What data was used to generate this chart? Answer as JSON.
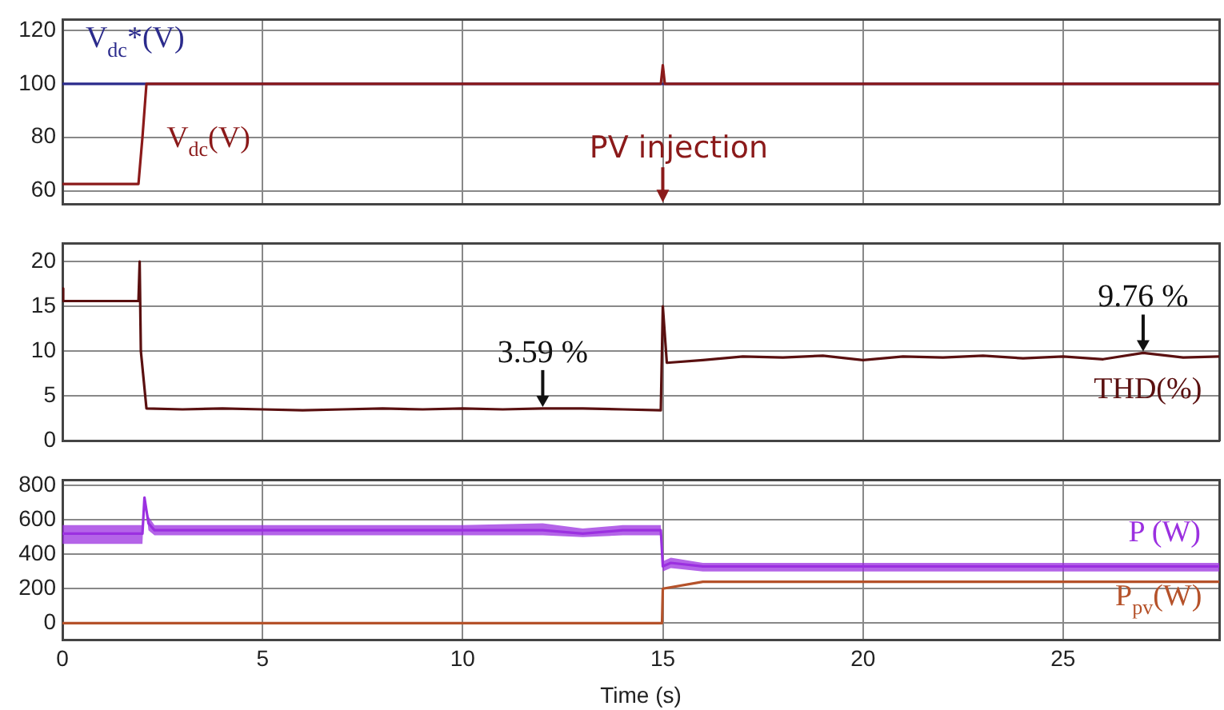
{
  "chart_data": [
    {
      "type": "line",
      "xlim": [
        0,
        28.9
      ],
      "xticks": [
        0,
        5,
        10,
        15,
        20,
        25
      ],
      "ylim": [
        55,
        124
      ],
      "yticks": [
        60,
        80,
        100,
        120
      ],
      "grid": true,
      "legend": false,
      "tick_labels": "y",
      "series": [
        {
          "name": "V$_{dc}$*(V)",
          "color": "#2b2b8c",
          "x": [
            0,
            2,
            28.9
          ],
          "values": [
            100,
            100,
            100
          ]
        },
        {
          "name": "V$_{dc}$(V)",
          "color": "#8b1a1a",
          "x": [
            0,
            1.9,
            2.0,
            2.1,
            14.95,
            15.0,
            15.05,
            28.9
          ],
          "values": [
            62.5,
            62.5,
            80,
            100,
            100,
            107,
            100,
            100
          ]
        }
      ],
      "annotations": [
        "PV injection"
      ]
    },
    {
      "type": "line",
      "xlim": [
        0,
        28.9
      ],
      "xticks": [
        0,
        5,
        10,
        15,
        20,
        25
      ],
      "ylim": [
        0,
        22
      ],
      "yticks": [
        0,
        5,
        10,
        15,
        20
      ],
      "grid": true,
      "legend": false,
      "tick_labels": "y",
      "series": [
        {
          "name": "THD(%)",
          "color": "#5a1010",
          "x": [
            0,
            0.02,
            1.9,
            1.93,
            1.96,
            2.1,
            3,
            4,
            5,
            6,
            7,
            8,
            9,
            10,
            11,
            12,
            13,
            14,
            14.95,
            15.0,
            15.1,
            16,
            17,
            18,
            19,
            20,
            21,
            22,
            23,
            24,
            25,
            26,
            27,
            28,
            28.9
          ],
          "values": [
            17,
            15.6,
            15.6,
            20,
            10,
            3.6,
            3.5,
            3.6,
            3.5,
            3.4,
            3.5,
            3.6,
            3.5,
            3.6,
            3.5,
            3.6,
            3.6,
            3.5,
            3.4,
            15,
            8.7,
            9.0,
            9.4,
            9.3,
            9.5,
            9.0,
            9.4,
            9.3,
            9.5,
            9.2,
            9.4,
            9.1,
            9.8,
            9.3,
            9.4
          ]
        }
      ],
      "annotations": [
        {
          "text": "3.59 %",
          "x": 12,
          "y": 3.6
        },
        {
          "text": "9.76 %",
          "x": 27,
          "y": 9.8
        }
      ]
    },
    {
      "type": "line",
      "xlim": [
        0,
        28.9
      ],
      "xticks": [
        0,
        5,
        10,
        15,
        20,
        25
      ],
      "ylim": [
        -100,
        830
      ],
      "yticks": [
        0,
        200,
        400,
        600,
        800
      ],
      "grid": true,
      "legend": false,
      "xlabel": "Time (s)",
      "series": [
        {
          "name": "P (W)",
          "color": "#9b30e0",
          "x": [
            0,
            1.95,
            2.0,
            2.05,
            2.15,
            2.3,
            5,
            8,
            10,
            12,
            13,
            14,
            14.95,
            15.0,
            15.2,
            16,
            20,
            25,
            28.9
          ],
          "values": [
            520,
            520,
            520,
            730,
            580,
            540,
            540,
            540,
            540,
            540,
            520,
            540,
            540,
            330,
            350,
            330,
            330,
            330,
            330
          ],
          "lower": [
            460,
            460,
            460,
            730,
            540,
            510,
            510,
            510,
            510,
            510,
            500,
            510,
            510,
            300,
            320,
            300,
            300,
            300,
            300
          ],
          "upper": [
            570,
            570,
            570,
            730,
            620,
            570,
            570,
            570,
            570,
            580,
            550,
            570,
            570,
            360,
            380,
            350,
            350,
            350,
            350
          ]
        },
        {
          "name": "P$_{pv}$(W)",
          "color": "#b5522a",
          "x": [
            0,
            14.98,
            15.0,
            16,
            28.9
          ],
          "values": [
            0,
            0,
            200,
            240,
            240
          ]
        }
      ]
    }
  ]
}
